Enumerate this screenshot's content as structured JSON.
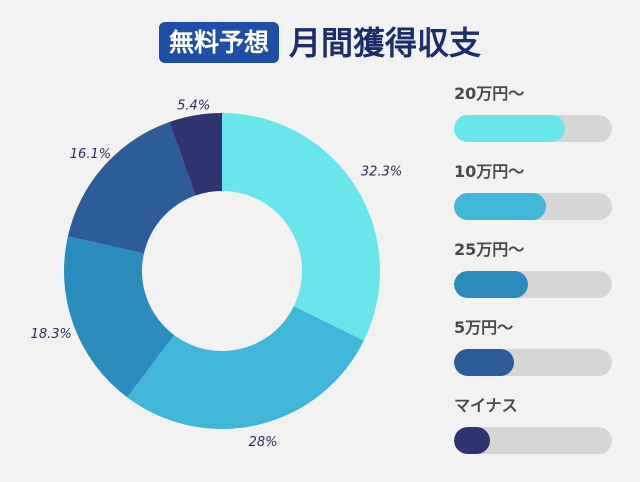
{
  "header": {
    "badge": "無料予想",
    "title": "月間獲得収支"
  },
  "chart_data": {
    "type": "pie",
    "title": "月間獲得収支",
    "series": [
      {
        "name": "20万円〜",
        "value": 32.3,
        "label": "32.3%",
        "color": "#68e6ec"
      },
      {
        "name": "10万円〜",
        "value": 28,
        "label": "28%",
        "color": "#40b6d8"
      },
      {
        "name": "25万円〜",
        "value": 18.3,
        "label": "18.3%",
        "color": "#2a8cbd"
      },
      {
        "name": "5万円〜",
        "value": 16.1,
        "label": "16.1%",
        "color": "#2d5d98"
      },
      {
        "name": "マイナス",
        "value": 5.4,
        "label": "5.4%",
        "color": "#2f3470"
      }
    ],
    "legend": "right"
  },
  "legend_bars": [
    {
      "label": "20万円〜",
      "fill": 0.7,
      "color": "#68e6ec"
    },
    {
      "label": "10万円〜",
      "fill": 0.58,
      "color": "#40b6d8"
    },
    {
      "label": "25万円〜",
      "fill": 0.47,
      "color": "#2a8cbd"
    },
    {
      "label": "5万円〜",
      "fill": 0.38,
      "color": "#2d5d98"
    },
    {
      "label": "マイナス",
      "fill": 0.23,
      "color": "#2f3470"
    }
  ]
}
